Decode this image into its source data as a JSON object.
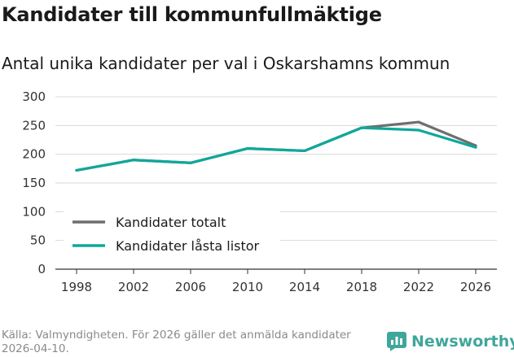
{
  "title": "Kandidater till kommunfullmäktige",
  "subtitle": "Antal unika kandidater per val i Oskarshamns kommun",
  "source": "Källa: Valmyndigheten. För 2026 gäller det anmälda kandidater 2026-04-10.",
  "brand": {
    "name": "Newsworthy",
    "icon": "newsworthy-logo-icon",
    "color": "#3fa69a"
  },
  "chart_data": {
    "type": "line",
    "title": "Kandidater till kommunfullmäktige",
    "subtitle": "Antal unika kandidater per val i Oskarshamns kommun",
    "xlabel": "",
    "ylabel": "",
    "x": [
      "1998",
      "2002",
      "2006",
      "2010",
      "2014",
      "2018",
      "2022",
      "2026"
    ],
    "ylim": [
      0,
      300
    ],
    "yticks": [
      "0",
      "50",
      "100",
      "150",
      "200",
      "250",
      "300"
    ],
    "grid": true,
    "legend_position": "bottom-left",
    "series": [
      {
        "name": "Kandidater totalt",
        "color": "#6e6e6e",
        "values": [
          172,
          190,
          185,
          210,
          206,
          246,
          256,
          215
        ]
      },
      {
        "name": "Kandidater låsta listor",
        "color": "#0fa89a",
        "values": [
          172,
          190,
          185,
          210,
          206,
          246,
          242,
          212
        ]
      }
    ]
  }
}
